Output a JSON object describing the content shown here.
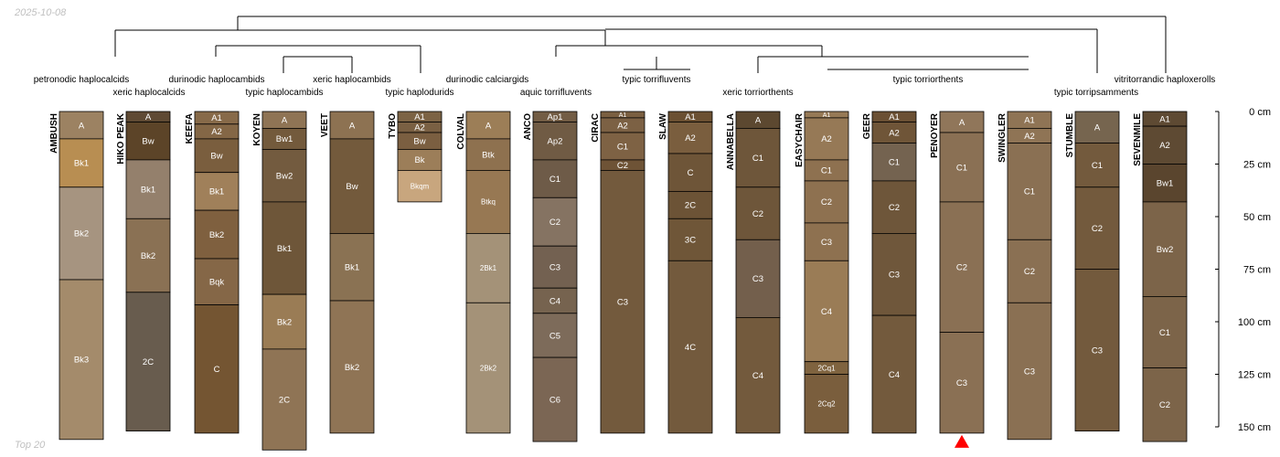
{
  "header": {
    "date": "2025-10-08"
  },
  "footer": {
    "label": "Top 20"
  },
  "depth_axis": {
    "unit": "cm",
    "max": 150,
    "ticks": [
      "0 cm",
      "25 cm",
      "50 cm",
      "75 cm",
      "100 cm",
      "125 cm",
      "150 cm"
    ]
  },
  "taxa": [
    {
      "label": "petronodic haplocalcids"
    },
    {
      "label": "xeric haplocalcids"
    },
    {
      "label": "durinodic haplocambids"
    },
    {
      "label": "typic haplocambids"
    },
    {
      "label": "xeric haplocambids"
    },
    {
      "label": "typic haplodurids"
    },
    {
      "label": "durinodic calciargids"
    },
    {
      "label": "aquic torrifluvents"
    },
    {
      "label": "typic torrifluvents"
    },
    {
      "label": "xeric torriorthents"
    },
    {
      "label": "typic torriorthents"
    },
    {
      "label": "typic torripsamments"
    },
    {
      "label": "vitritorrandic haploxerolls"
    }
  ],
  "profiles": [
    {
      "name": "AMBUSH",
      "horizons": [
        {
          "name": "A",
          "top": 0,
          "bottom": 13,
          "color": "#9c8262"
        },
        {
          "name": "Bk1",
          "top": 13,
          "bottom": 36,
          "color": "#b88e52"
        },
        {
          "name": "Bk2",
          "top": 36,
          "bottom": 80,
          "color": "#a69480"
        },
        {
          "name": "Bk3",
          "top": 80,
          "bottom": 156,
          "color": "#a48b6b"
        }
      ]
    },
    {
      "name": "HIKO PEAK",
      "horizons": [
        {
          "name": "A",
          "top": 0,
          "bottom": 5,
          "color": "#5f4a34"
        },
        {
          "name": "Bw",
          "top": 5,
          "bottom": 23,
          "color": "#5c4428"
        },
        {
          "name": "Bk1",
          "top": 23,
          "bottom": 51,
          "color": "#94806c"
        },
        {
          "name": "Bk2",
          "top": 51,
          "bottom": 86,
          "color": "#8a7154"
        },
        {
          "name": "2C",
          "top": 86,
          "bottom": 152,
          "color": "#685c4e"
        }
      ]
    },
    {
      "name": "KEEFA",
      "horizons": [
        {
          "name": "A1",
          "top": 0,
          "bottom": 6,
          "color": "#876a49"
        },
        {
          "name": "A2",
          "top": 6,
          "bottom": 13,
          "color": "#846746"
        },
        {
          "name": "Bw",
          "top": 13,
          "bottom": 29,
          "color": "#7a5e3e"
        },
        {
          "name": "Bk1",
          "top": 29,
          "bottom": 47,
          "color": "#a0805a"
        },
        {
          "name": "Bk2",
          "top": 47,
          "bottom": 70,
          "color": "#7f603f"
        },
        {
          "name": "Bqk",
          "top": 70,
          "bottom": 92,
          "color": "#856747"
        },
        {
          "name": "C",
          "top": 92,
          "bottom": 153,
          "color": "#745532"
        }
      ]
    },
    {
      "name": "KOYEN",
      "horizons": [
        {
          "name": "A",
          "top": 0,
          "bottom": 8,
          "color": "#8f7455"
        },
        {
          "name": "Bw1",
          "top": 8,
          "bottom": 18,
          "color": "#735a3c"
        },
        {
          "name": "Bw2",
          "top": 18,
          "bottom": 43,
          "color": "#735b3f"
        },
        {
          "name": "Bk1",
          "top": 43,
          "bottom": 87,
          "color": "#6e5639"
        },
        {
          "name": "Bk2",
          "top": 87,
          "bottom": 113,
          "color": "#9a7c55"
        },
        {
          "name": "2C",
          "top": 113,
          "bottom": 161,
          "color": "#8f7455"
        }
      ]
    },
    {
      "name": "VEET",
      "horizons": [
        {
          "name": "A",
          "top": 0,
          "bottom": 13,
          "color": "#8d7252"
        },
        {
          "name": "Bw",
          "top": 13,
          "bottom": 58,
          "color": "#735a3c"
        },
        {
          "name": "Bk1",
          "top": 58,
          "bottom": 90,
          "color": "#8a7253"
        },
        {
          "name": "Bk2",
          "top": 90,
          "bottom": 153,
          "color": "#8f7455"
        }
      ]
    },
    {
      "name": "TYBO",
      "horizons": [
        {
          "name": "A1",
          "top": 0,
          "bottom": 5,
          "color": "#7c6345"
        },
        {
          "name": "A2",
          "top": 5,
          "bottom": 10,
          "color": "#7a6043"
        },
        {
          "name": "Bw",
          "top": 10,
          "bottom": 18,
          "color": "#7b5f41"
        },
        {
          "name": "Bk",
          "top": 18,
          "bottom": 28,
          "color": "#9c7e59"
        },
        {
          "name": "Bkqm",
          "top": 28,
          "bottom": 43,
          "color": "#c8a67e"
        }
      ]
    },
    {
      "name": "COLVAL",
      "horizons": [
        {
          "name": "A",
          "top": 0,
          "bottom": 13,
          "color": "#9c7e57"
        },
        {
          "name": "Btk",
          "top": 13,
          "bottom": 28,
          "color": "#8e714f"
        },
        {
          "name": "Btkq",
          "top": 28,
          "bottom": 58,
          "color": "#977853"
        },
        {
          "name": "2Bk1",
          "top": 58,
          "bottom": 91,
          "color": "#a49278"
        },
        {
          "name": "2Bk2",
          "top": 91,
          "bottom": 153,
          "color": "#a49278"
        }
      ]
    },
    {
      "name": "ANCO",
      "horizons": [
        {
          "name": "Ap1",
          "top": 0,
          "bottom": 5,
          "color": "#735d45"
        },
        {
          "name": "Ap2",
          "top": 5,
          "bottom": 23,
          "color": "#705b44"
        },
        {
          "name": "C1",
          "top": 23,
          "bottom": 41,
          "color": "#6e5b48"
        },
        {
          "name": "C2",
          "top": 41,
          "bottom": 64,
          "color": "#857362"
        },
        {
          "name": "C3",
          "top": 64,
          "bottom": 84,
          "color": "#736151"
        },
        {
          "name": "C4",
          "top": 84,
          "bottom": 96,
          "color": "#76634f"
        },
        {
          "name": "C5",
          "top": 96,
          "bottom": 117,
          "color": "#7d6b5a"
        },
        {
          "name": "C6",
          "top": 117,
          "bottom": 157,
          "color": "#7b6654"
        }
      ]
    },
    {
      "name": "CIRAC",
      "horizons": [
        {
          "name": "A1",
          "top": 0,
          "bottom": 3,
          "color": "#7a5f41"
        },
        {
          "name": "A2",
          "top": 3,
          "bottom": 10,
          "color": "#7c6144"
        },
        {
          "name": "C1",
          "top": 10,
          "bottom": 23,
          "color": "#7e6244"
        },
        {
          "name": "C2",
          "top": 23,
          "bottom": 28,
          "color": "#6e5336"
        },
        {
          "name": "C3",
          "top": 28,
          "bottom": 153,
          "color": "#735a3d"
        }
      ]
    },
    {
      "name": "SLAW",
      "horizons": [
        {
          "name": "A1",
          "top": 0,
          "bottom": 5,
          "color": "#6b5032"
        },
        {
          "name": "A2",
          "top": 5,
          "bottom": 20,
          "color": "#7a5e3e"
        },
        {
          "name": "C",
          "top": 20,
          "bottom": 38,
          "color": "#6e5538"
        },
        {
          "name": "2C",
          "top": 38,
          "bottom": 51,
          "color": "#6c5336"
        },
        {
          "name": "3C",
          "top": 51,
          "bottom": 71,
          "color": "#6f5638"
        },
        {
          "name": "4C",
          "top": 71,
          "bottom": 153,
          "color": "#735a3d"
        }
      ]
    },
    {
      "name": "ANNABELLA",
      "horizons": [
        {
          "name": "A",
          "top": 0,
          "bottom": 8,
          "color": "#5c4830"
        },
        {
          "name": "C1",
          "top": 8,
          "bottom": 36,
          "color": "#6e563a"
        },
        {
          "name": "C2",
          "top": 36,
          "bottom": 61,
          "color": "#6e563a"
        },
        {
          "name": "C3",
          "top": 61,
          "bottom": 98,
          "color": "#735f4c"
        },
        {
          "name": "C4",
          "top": 98,
          "bottom": 153,
          "color": "#735a3d"
        }
      ]
    },
    {
      "name": "EASYCHAIR",
      "horizons": [
        {
          "name": "A1",
          "top": 0,
          "bottom": 3,
          "color": "#967956"
        },
        {
          "name": "A2",
          "top": 3,
          "bottom": 23,
          "color": "#967956"
        },
        {
          "name": "C1",
          "top": 23,
          "bottom": 33,
          "color": "#8e7150"
        },
        {
          "name": "C2",
          "top": 33,
          "bottom": 53,
          "color": "#8e7150"
        },
        {
          "name": "C3",
          "top": 53,
          "bottom": 71,
          "color": "#8e7150"
        },
        {
          "name": "C4",
          "top": 71,
          "bottom": 119,
          "color": "#9a7c56"
        },
        {
          "name": "2Cq1",
          "top": 119,
          "bottom": 125,
          "color": "#7f633f"
        },
        {
          "name": "2Cq2",
          "top": 125,
          "bottom": 153,
          "color": "#7a5e3d"
        }
      ]
    },
    {
      "name": "GEER",
      "horizons": [
        {
          "name": "A1",
          "top": 0,
          "bottom": 5,
          "color": "#6b5034"
        },
        {
          "name": "A2",
          "top": 5,
          "bottom": 15,
          "color": "#6f5538"
        },
        {
          "name": "C1",
          "top": 15,
          "bottom": 33,
          "color": "#746350"
        },
        {
          "name": "C2",
          "top": 33,
          "bottom": 58,
          "color": "#6e563a"
        },
        {
          "name": "C3",
          "top": 58,
          "bottom": 97,
          "color": "#6f573b"
        },
        {
          "name": "C4",
          "top": 97,
          "bottom": 153,
          "color": "#735a3d"
        }
      ]
    },
    {
      "name": "PENOYER",
      "bottom_marker": true,
      "horizons": [
        {
          "name": "A",
          "top": 0,
          "bottom": 10,
          "color": "#90765a"
        },
        {
          "name": "C1",
          "top": 10,
          "bottom": 43,
          "color": "#8a7054"
        },
        {
          "name": "C2",
          "top": 43,
          "bottom": 105,
          "color": "#8a7054"
        },
        {
          "name": "C3",
          "top": 105,
          "bottom": 153,
          "color": "#8a7054"
        }
      ]
    },
    {
      "name": "SWINGLER",
      "horizons": [
        {
          "name": "A1",
          "top": 0,
          "bottom": 8,
          "color": "#8f7455"
        },
        {
          "name": "A2",
          "top": 8,
          "bottom": 15,
          "color": "#8f7455"
        },
        {
          "name": "C1",
          "top": 15,
          "bottom": 61,
          "color": "#8a7053"
        },
        {
          "name": "C2",
          "top": 61,
          "bottom": 91,
          "color": "#8a7053"
        },
        {
          "name": "C3",
          "top": 91,
          "bottom": 156,
          "color": "#8a7053"
        }
      ]
    },
    {
      "name": "STUMBLE",
      "horizons": [
        {
          "name": "A",
          "top": 0,
          "bottom": 15,
          "color": "#76654f"
        },
        {
          "name": "C1",
          "top": 15,
          "bottom": 36,
          "color": "#735a3d"
        },
        {
          "name": "C2",
          "top": 36,
          "bottom": 75,
          "color": "#735a3d"
        },
        {
          "name": "C3",
          "top": 75,
          "bottom": 152,
          "color": "#735a3d"
        }
      ]
    },
    {
      "name": "SEVENMILE",
      "horizons": [
        {
          "name": "A1",
          "top": 0,
          "bottom": 7,
          "color": "#5e4a33"
        },
        {
          "name": "A2",
          "top": 7,
          "bottom": 25,
          "color": "#5e4a33"
        },
        {
          "name": "Bw1",
          "top": 25,
          "bottom": 43,
          "color": "#5a452e"
        },
        {
          "name": "Bw2",
          "top": 43,
          "bottom": 88,
          "color": "#7c6449"
        },
        {
          "name": "C1",
          "top": 88,
          "bottom": 122,
          "color": "#7c6449"
        },
        {
          "name": "C2",
          "top": 122,
          "bottom": 157,
          "color": "#7c6449"
        }
      ]
    }
  ]
}
